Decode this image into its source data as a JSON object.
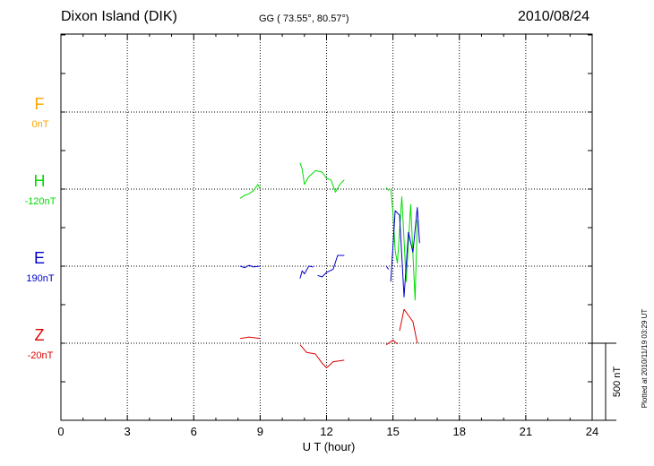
{
  "header": {
    "station": "Dixon Island (DIK)",
    "coords": "GG ( 73.55°,  80.57°)",
    "date": "2010/08/24"
  },
  "plot_note": "Plotted at 2010/11/19 03:29 UT",
  "scale_label": "500 nT",
  "chart_data": {
    "type": "line",
    "xlabel": "U T (hour)",
    "xlim": [
      0,
      24
    ],
    "x_ticks": [
      "0",
      "3",
      "6",
      "9",
      "12",
      "15",
      "18",
      "21",
      "24"
    ],
    "scale_bar_nT": 500,
    "grid": true,
    "components": [
      {
        "name": "F",
        "offset_label": "0nT",
        "color": "#ffa500",
        "segments": []
      },
      {
        "name": "H",
        "offset_label": "-120nT",
        "color": "#00dd00",
        "segments": [
          [
            [
              8.1,
              -60
            ],
            [
              8.3,
              -40
            ],
            [
              8.5,
              -30
            ],
            [
              8.7,
              -10
            ],
            [
              8.9,
              30
            ],
            [
              9.0,
              0
            ]
          ],
          [
            [
              10.8,
              170
            ],
            [
              10.9,
              130
            ],
            [
              11.0,
              30
            ],
            [
              11.2,
              80
            ],
            [
              11.5,
              120
            ],
            [
              11.8,
              110
            ],
            [
              12.0,
              70
            ],
            [
              12.2,
              60
            ],
            [
              12.4,
              -20
            ],
            [
              12.6,
              30
            ],
            [
              12.8,
              60
            ]
          ],
          [
            [
              14.7,
              10
            ],
            [
              14.8,
              -10
            ]
          ],
          [
            [
              14.9,
              0
            ],
            [
              15.0,
              -150
            ],
            [
              15.1,
              -400
            ],
            [
              15.2,
              -480
            ],
            [
              15.4,
              -50
            ],
            [
              15.6,
              -600
            ],
            [
              15.8,
              -100
            ],
            [
              16.0,
              -720
            ],
            [
              16.1,
              -200
            ]
          ]
        ]
      },
      {
        "name": "E",
        "offset_label": "190nT",
        "color": "#0000cc",
        "segments": [
          [
            [
              8.1,
              0
            ],
            [
              8.3,
              -10
            ],
            [
              8.5,
              5
            ],
            [
              8.7,
              -5
            ],
            [
              9.0,
              0
            ]
          ],
          [
            [
              10.8,
              -80
            ],
            [
              10.9,
              -30
            ],
            [
              11.0,
              -50
            ],
            [
              11.2,
              0
            ],
            [
              11.4,
              -5
            ]
          ],
          [
            [
              11.6,
              -60
            ],
            [
              11.8,
              -70
            ],
            [
              12.0,
              -40
            ],
            [
              12.3,
              -20
            ],
            [
              12.5,
              70
            ],
            [
              12.8,
              70
            ]
          ],
          [
            [
              14.7,
              0
            ],
            [
              14.8,
              -20
            ]
          ],
          [
            [
              14.9,
              -100
            ],
            [
              15.1,
              360
            ],
            [
              15.3,
              330
            ],
            [
              15.5,
              -200
            ],
            [
              15.7,
              220
            ],
            [
              15.9,
              90
            ],
            [
              16.1,
              380
            ],
            [
              16.2,
              150
            ]
          ]
        ]
      },
      {
        "name": "Z",
        "offset_label": "-20nT",
        "color": "#dd0000",
        "segments": [
          [
            [
              8.1,
              30
            ],
            [
              8.5,
              40
            ],
            [
              9.0,
              30
            ]
          ],
          [
            [
              10.8,
              -10
            ],
            [
              11.1,
              -60
            ],
            [
              11.5,
              -70
            ],
            [
              11.8,
              -130
            ],
            [
              12.0,
              -160
            ],
            [
              12.3,
              -120
            ],
            [
              12.8,
              -110
            ]
          ],
          [
            [
              14.7,
              -10
            ],
            [
              15.0,
              20
            ],
            [
              15.2,
              -5
            ]
          ],
          [
            [
              15.3,
              80
            ],
            [
              15.5,
              220
            ],
            [
              15.7,
              180
            ],
            [
              15.9,
              140
            ],
            [
              16.1,
              0
            ]
          ]
        ]
      }
    ]
  }
}
